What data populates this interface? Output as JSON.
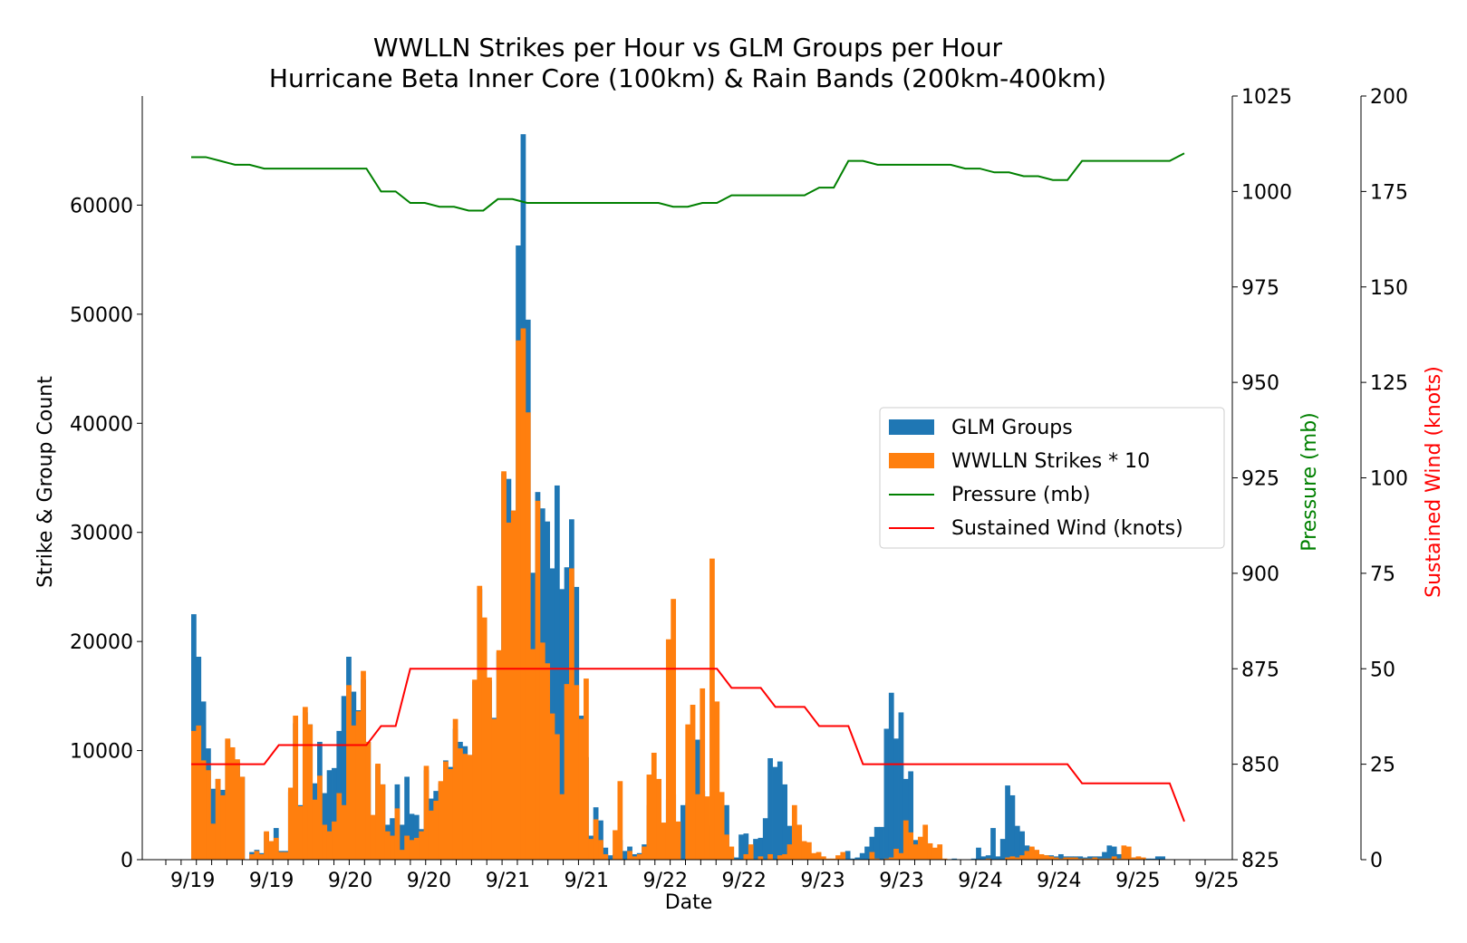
{
  "chart_data": {
    "type": "bar",
    "title_line1": "WWLLN Strikes per Hour vs GLM Groups per Hour",
    "title_line2": "Hurricane Beta Inner Core (100km) & Rain Bands (200km-400km)",
    "xlabel": "Date",
    "ylabel_left": "Strike & Group Count",
    "ylabel_pressure": "Pressure (mb)",
    "ylabel_wind": "Sustained Wind (knots)",
    "ylim_left": [
      0,
      70000
    ],
    "ylim_pressure": [
      825,
      1025
    ],
    "ylim_wind": [
      0,
      200
    ],
    "yticks_left": [
      0,
      10000,
      20000,
      30000,
      40000,
      50000,
      60000
    ],
    "yticks_pressure": [
      825,
      850,
      875,
      900,
      925,
      950,
      975,
      1000,
      1025
    ],
    "yticks_wind": [
      0,
      25,
      50,
      75,
      100,
      125,
      150,
      175,
      200
    ],
    "xtick_labels": [
      "9/19",
      "9/19",
      "9/20",
      "9/20",
      "9/21",
      "9/21",
      "9/22",
      "9/22",
      "9/23",
      "9/23",
      "9/24",
      "9/24",
      "9/25",
      "9/25"
    ],
    "hours_step": 3,
    "legend_position": "center-right",
    "colors": {
      "glm": "#1f77b4",
      "wwlln": "#ff7f0e",
      "pressure": "#008000",
      "wind": "#ff0000"
    },
    "series": [
      {
        "name": "GLM Groups",
        "values": [
          22500,
          18600,
          14500,
          10200,
          6500,
          7400,
          6400,
          11000,
          9500,
          9000,
          7600,
          0,
          700,
          900,
          600,
          2500,
          1600,
          2900,
          800,
          800,
          6200,
          12500,
          5000,
          13500,
          12400,
          7000,
          10800,
          6100,
          8200,
          8400,
          11800,
          15000,
          18600,
          15400,
          13700,
          16500,
          10800,
          3800,
          8700,
          6900,
          3200,
          3800,
          6900,
          3200,
          7600,
          4200,
          4100,
          2800,
          8200,
          5600,
          6300,
          7000,
          9100,
          8500,
          12000,
          10800,
          10400,
          9600,
          16300,
          24800,
          22000,
          16400,
          13000,
          19000,
          35400,
          34900,
          32000,
          56300,
          66500,
          49500,
          26300,
          33700,
          32200,
          31000,
          26700,
          34300,
          24800,
          26800,
          31200,
          25000,
          13200,
          9400,
          2200,
          4800,
          3600,
          1100,
          400,
          500,
          1800,
          800,
          1200,
          500,
          600,
          1400,
          5000,
          7000,
          6100,
          3200,
          5500,
          6000,
          3400,
          5000,
          5200,
          6100,
          11000,
          6300,
          3100,
          2300,
          600,
          3000,
          5000,
          300,
          200,
          2300,
          2400,
          700,
          1900,
          2000,
          3800,
          9300,
          8500,
          9000,
          6900,
          3100,
          1400,
          2200,
          1000,
          300,
          400,
          600,
          0,
          0,
          0,
          0,
          300,
          800,
          100,
          200,
          600,
          1200,
          2100,
          3000,
          3000,
          12000,
          15300,
          11100,
          13500,
          7400,
          8100,
          1800,
          1600,
          1700,
          300,
          200,
          0,
          0,
          0,
          100,
          0,
          0,
          0,
          100,
          1100,
          300,
          400,
          2900,
          300,
          1900,
          6800,
          5900,
          3100,
          2600,
          1300,
          1100,
          800,
          200,
          400,
          400,
          300,
          500,
          300,
          300,
          300,
          300,
          200,
          300,
          300,
          300,
          700,
          1300,
          1200,
          500,
          300,
          200,
          200,
          100,
          0,
          100,
          100,
          300,
          300,
          0,
          0,
          0,
          0
        ],
        "type": "bar"
      },
      {
        "name": "WWLLN Strikes * 10",
        "values": [
          11800,
          12300,
          9100,
          8200,
          3300,
          7400,
          5900,
          11100,
          10300,
          9200,
          7600,
          0,
          500,
          800,
          500,
          2600,
          1700,
          2000,
          700,
          700,
          6600,
          13200,
          4900,
          14000,
          12400,
          5500,
          7700,
          3200,
          2600,
          3500,
          6100,
          5000,
          16000,
          12300,
          13600,
          17300,
          10800,
          4100,
          8800,
          6900,
          2600,
          2200,
          4700,
          900,
          2200,
          1800,
          2000,
          2600,
          8600,
          4500,
          5400,
          7200,
          9000,
          8300,
          12900,
          10200,
          9700,
          9600,
          16500,
          25100,
          22200,
          16700,
          12900,
          19200,
          35600,
          30900,
          32000,
          47600,
          48700,
          41000,
          19300,
          32900,
          19900,
          18000,
          13400,
          11500,
          6000,
          16100,
          26700,
          16000,
          12900,
          16600,
          1900,
          3700,
          1800,
          500,
          0,
          2700,
          7200,
          0,
          800,
          300,
          500,
          1200,
          7800,
          9800,
          7400,
          3400,
          20200,
          23900,
          3500,
          0,
          12400,
          14200,
          6000,
          15700,
          5800,
          27600,
          14500,
          6200,
          2300,
          1200,
          0,
          0,
          500,
          1400,
          0,
          300,
          0,
          500,
          0,
          400,
          500,
          1400,
          5000,
          3200,
          1700,
          1600,
          600,
          700,
          300,
          100,
          100,
          400,
          700,
          0,
          0,
          0,
          0,
          0,
          700,
          100,
          0,
          100,
          200,
          1000,
          600,
          3600,
          2500,
          1400,
          2100,
          3200,
          1500,
          1100,
          1400,
          100,
          0,
          0,
          0,
          0,
          0,
          0,
          0,
          0,
          100,
          0,
          0,
          0,
          200,
          300,
          200,
          400,
          800,
          1200,
          900,
          500,
          400,
          300,
          200,
          100,
          200,
          200,
          200,
          100,
          100,
          100,
          200,
          100,
          100,
          100,
          300,
          100,
          1300,
          1200,
          200,
          300,
          200,
          0,
          0,
          0,
          0,
          0,
          0,
          0,
          0,
          0,
          0,
          0,
          0
        ],
        "type": "bar"
      },
      {
        "name": "Pressure (mb)",
        "values": [
          1009,
          1009,
          1008,
          1007,
          1007,
          1006,
          1006,
          1006,
          1006,
          1006,
          1006,
          1006,
          1006,
          1000,
          1000,
          997,
          997,
          996,
          996,
          995,
          995,
          998,
          998,
          997,
          997,
          997,
          997,
          997,
          997,
          997,
          997,
          997,
          997,
          996,
          996,
          997,
          997,
          999,
          999,
          999,
          999,
          999,
          999,
          1001,
          1001,
          1008,
          1008,
          1007,
          1007,
          1007,
          1007,
          1007,
          1007,
          1006,
          1006,
          1005,
          1005,
          1004,
          1004,
          1003,
          1003,
          1008,
          1008,
          1008,
          1008,
          1008,
          1008,
          1008,
          1010
        ],
        "type": "line"
      },
      {
        "name": "Sustained Wind (knots)",
        "values": [
          25,
          25,
          25,
          25,
          25,
          25,
          30,
          30,
          30,
          30,
          30,
          30,
          30,
          35,
          35,
          50,
          50,
          50,
          50,
          50,
          50,
          50,
          50,
          50,
          50,
          50,
          50,
          50,
          50,
          50,
          50,
          50,
          50,
          50,
          50,
          50,
          50,
          45,
          45,
          45,
          40,
          40,
          40,
          35,
          35,
          35,
          25,
          25,
          25,
          25,
          25,
          25,
          25,
          25,
          25,
          25,
          25,
          25,
          25,
          25,
          25,
          20,
          20,
          20,
          20,
          20,
          20,
          20,
          10
        ],
        "type": "line"
      }
    ]
  }
}
